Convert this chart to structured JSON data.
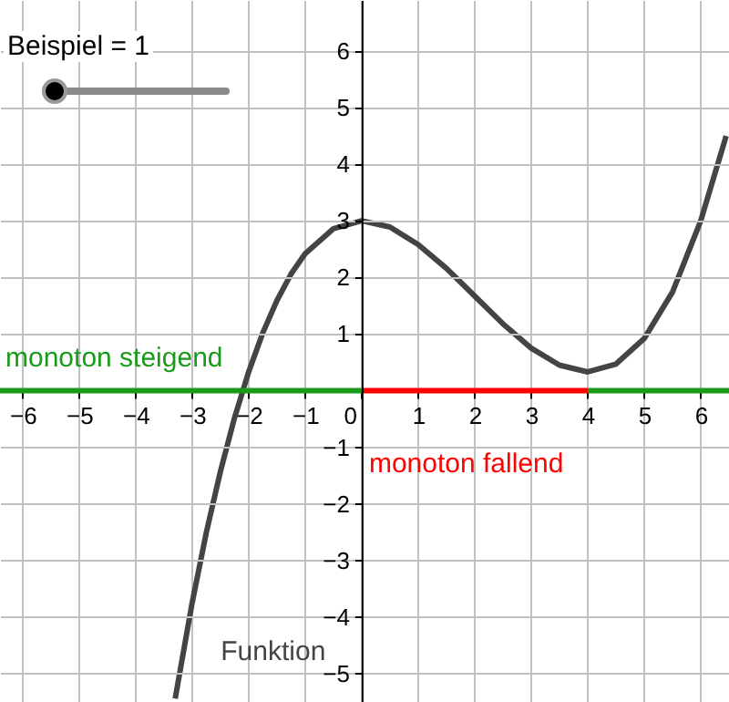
{
  "chart_data": {
    "type": "line",
    "annotations": [
      "Beispiel = 1"
    ],
    "xlim": [
      -6.4,
      6.5
    ],
    "ylim": [
      -5.5,
      6.9
    ],
    "xticks": [
      {
        "value": -6,
        "label": "−6"
      },
      {
        "value": -5,
        "label": "−5"
      },
      {
        "value": -4,
        "label": "−4"
      },
      {
        "value": -3,
        "label": "−3"
      },
      {
        "value": -2,
        "label": "−2"
      },
      {
        "value": -1,
        "label": "−1"
      },
      0,
      1,
      2,
      3,
      4,
      5,
      6
    ],
    "yticks": [
      {
        "value": -5,
        "label": "−5"
      },
      {
        "value": -4,
        "label": "−4"
      },
      {
        "value": -3,
        "label": "−3"
      },
      {
        "value": -2,
        "label": "−2"
      },
      {
        "value": -1,
        "label": "−1"
      },
      1,
      2,
      3,
      4,
      5,
      6
    ],
    "grid": true,
    "marker": "none",
    "line_style": "solid",
    "series": [
      {
        "name": "Funktion",
        "color": "#444444",
        "x": [
          -3.3,
          -3,
          -2.75,
          -2.5,
          -2.25,
          -2,
          -1.75,
          -1.5,
          -1.25,
          -1,
          -0.5,
          0,
          0.5,
          1,
          1.5,
          2,
          2.5,
          3,
          3.5,
          4,
          4.5,
          5,
          5.5,
          6,
          6.45
        ],
        "values": [
          -5.44,
          -3.75,
          -2.51,
          -1.43,
          -0.48,
          0.33,
          1.02,
          1.59,
          2.06,
          2.42,
          2.86,
          3,
          2.89,
          2.58,
          2.16,
          1.67,
          1.18,
          0.75,
          0.45,
          0.33,
          0.47,
          0.92,
          1.74,
          3,
          4.5
        ]
      },
      {
        "name": "monoton steigend",
        "color": "#1a9a1a",
        "x": [
          -6.4,
          0
        ],
        "values": [
          0,
          0
        ]
      },
      {
        "name": "monoton fallend",
        "color": "#ff0000",
        "x": [
          0,
          4
        ],
        "values": [
          0,
          0
        ]
      },
      {
        "color": "#1a9a1a",
        "x": [
          4,
          6.5
        ],
        "values": [
          0,
          0
        ]
      }
    ]
  }
}
